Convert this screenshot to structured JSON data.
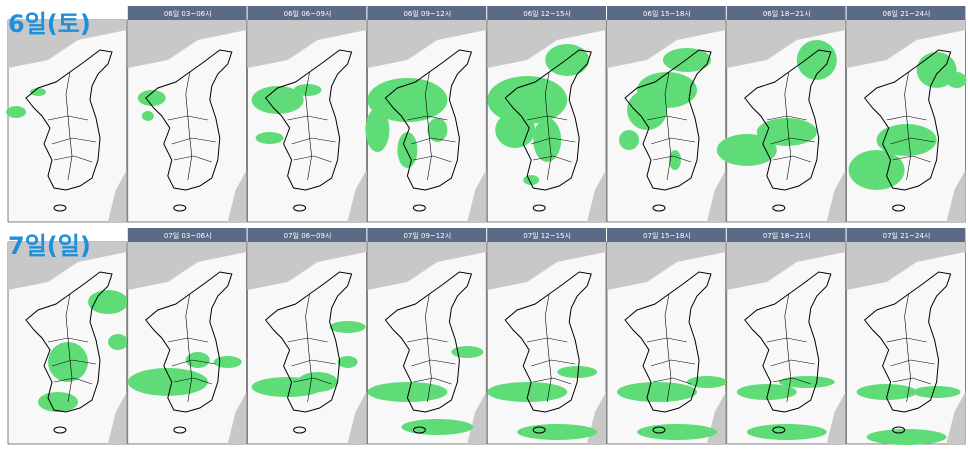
{
  "rows": [
    {
      "label": "6일(토)",
      "headers": [
        "06일 03~06시",
        "06일 06~09시",
        "06일 09~12시",
        "06일 12~15시",
        "06일 15~18시",
        "06일 18~21시",
        "06일 21~24시"
      ]
    },
    {
      "label": "7일(일)",
      "headers": [
        "07일 03~06시",
        "07일 06~09시",
        "07일 09~12시",
        "07일 12~15시",
        "07일 15~18시",
        "07일 18~21시",
        "07일 21~24시"
      ]
    }
  ]
}
